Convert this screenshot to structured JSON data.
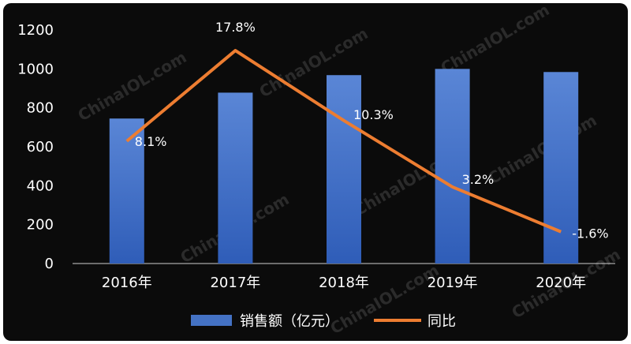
{
  "chart_data": {
    "type": "bar",
    "categories": [
      "2016年",
      "2017年",
      "2018年",
      "2019年",
      "2020年"
    ],
    "series": [
      {
        "name": "销售额（亿元）",
        "type": "bar",
        "axis": "left",
        "values": [
          745,
          878,
          968,
          1000,
          984
        ],
        "color": "#4472c4"
      },
      {
        "name": "同比",
        "type": "line",
        "axis": "right",
        "values": [
          8.1,
          17.8,
          10.3,
          3.2,
          -1.6
        ],
        "labels": [
          "8.1%",
          "17.8%",
          "10.3%",
          "3.2%",
          "-1.6%"
        ],
        "color": "#ed7d31"
      }
    ],
    "yticks": [
      0,
      200,
      400,
      600,
      800,
      1000,
      1200
    ],
    "ylim": [
      0,
      1200
    ],
    "y2lim": [
      -5,
      20
    ],
    "grid": false,
    "legend": "bottom",
    "title": "",
    "xlabel": "",
    "ylabel": ""
  },
  "watermark": "ChinaIOL.com",
  "colors": {
    "background": "#0b0b0b",
    "bar": "#4472c4",
    "line": "#ed7d31"
  }
}
